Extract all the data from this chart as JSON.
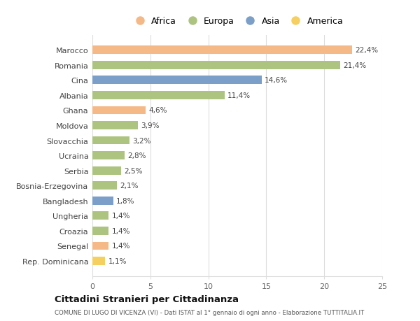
{
  "countries": [
    "Marocco",
    "Romania",
    "Cina",
    "Albania",
    "Ghana",
    "Moldova",
    "Slovacchia",
    "Ucraina",
    "Serbia",
    "Bosnia-Erzegovina",
    "Bangladesh",
    "Ungheria",
    "Croazia",
    "Senegal",
    "Rep. Dominicana"
  ],
  "values": [
    22.4,
    21.4,
    14.6,
    11.4,
    4.6,
    3.9,
    3.2,
    2.8,
    2.5,
    2.1,
    1.8,
    1.4,
    1.4,
    1.4,
    1.1
  ],
  "labels": [
    "22,4%",
    "21,4%",
    "14,6%",
    "11,4%",
    "4,6%",
    "3,9%",
    "3,2%",
    "2,8%",
    "2,5%",
    "2,1%",
    "1,8%",
    "1,4%",
    "1,4%",
    "1,4%",
    "1,1%"
  ],
  "colors": [
    "#f5b887",
    "#adc480",
    "#7b9fc8",
    "#adc480",
    "#f5b887",
    "#adc480",
    "#adc480",
    "#adc480",
    "#adc480",
    "#adc480",
    "#7b9fc8",
    "#adc480",
    "#adc480",
    "#f5b887",
    "#f5d060"
  ],
  "legend_labels": [
    "Africa",
    "Europa",
    "Asia",
    "America"
  ],
  "legend_colors": [
    "#f5b887",
    "#adc480",
    "#7b9fc8",
    "#f5d060"
  ],
  "title": "Cittadini Stranieri per Cittadinanza",
  "subtitle": "COMUNE DI LUGO DI VICENZA (VI) - Dati ISTAT al 1° gennaio di ogni anno - Elaborazione TUTTITALIA.IT",
  "xlim": [
    0,
    25
  ],
  "xticks": [
    0,
    5,
    10,
    15,
    20,
    25
  ],
  "background_color": "#ffffff",
  "grid_color": "#dddddd"
}
